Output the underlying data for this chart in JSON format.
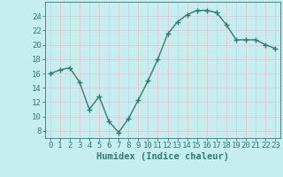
{
  "x": [
    0,
    1,
    2,
    3,
    4,
    5,
    6,
    7,
    8,
    9,
    10,
    11,
    12,
    13,
    14,
    15,
    16,
    17,
    18,
    19,
    20,
    21,
    22,
    23
  ],
  "y": [
    16,
    16.5,
    16.8,
    14.8,
    11.0,
    12.8,
    9.3,
    7.8,
    9.7,
    12.3,
    15.0,
    18.0,
    21.5,
    23.2,
    24.2,
    24.8,
    24.8,
    24.5,
    22.8,
    20.7,
    20.7,
    20.7,
    20.0,
    19.5
  ],
  "line_color": "#2e7d6e",
  "marker": "+",
  "markersize": 4,
  "linewidth": 1.0,
  "background_color": "#c6eef0",
  "grid_color": "#e8c8c8",
  "tick_color": "#2e7d6e",
  "label_color": "#2e7d6e",
  "xlabel": "Humidex (Indice chaleur)",
  "xlim": [
    -0.5,
    23.5
  ],
  "ylim": [
    7,
    26
  ],
  "yticks": [
    8,
    10,
    12,
    14,
    16,
    18,
    20,
    22,
    24
  ],
  "xticks": [
    0,
    1,
    2,
    3,
    4,
    5,
    6,
    7,
    8,
    9,
    10,
    11,
    12,
    13,
    14,
    15,
    16,
    17,
    18,
    19,
    20,
    21,
    22,
    23
  ],
  "xlabel_fontsize": 7.5,
  "tick_fontsize": 6.5
}
